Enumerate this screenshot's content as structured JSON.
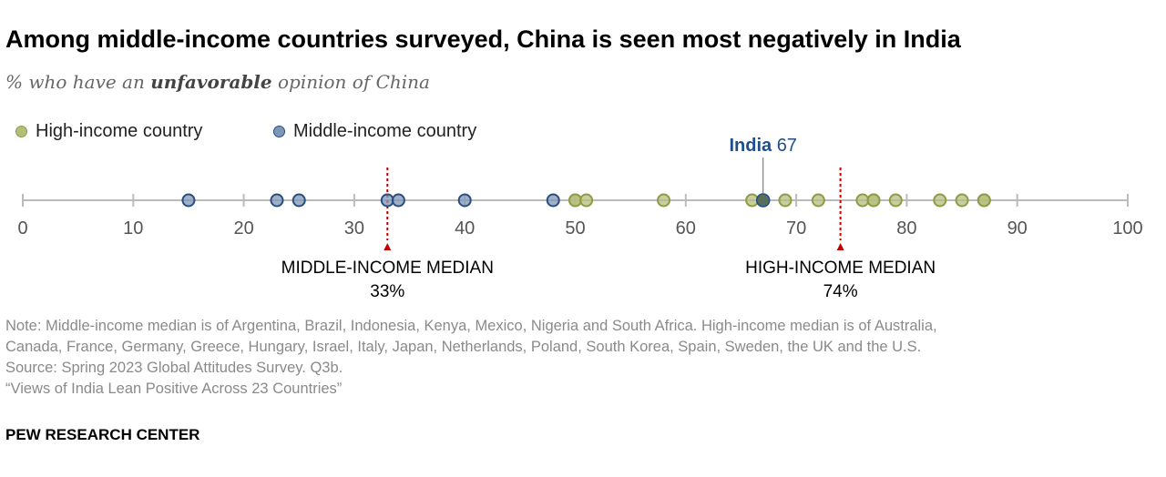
{
  "title": "Among middle-income countries surveyed, China is seen most negatively in India",
  "subtitle_prefix": "% who have an ",
  "subtitle_bold": "unfavorable",
  "subtitle_suffix": " opinion of China",
  "legend": [
    {
      "label": "High-income country",
      "color": "#b5bd7c"
    },
    {
      "label": "Middle-income country",
      "color": "#7f97b6"
    }
  ],
  "notes": [
    "Note: Middle-income median is of Argentina, Brazil, Indonesia, Kenya, Mexico, Nigeria and South Africa. High-income median is of Australia,",
    "Canada, France, Germany, Greece, Hungary, Israel, Italy, Japan, Netherlands, Poland, South Korea, Spain, Sweden, the UK and the U.S.",
    "Source: Spring 2023 Global Attitudes Survey. Q3b.",
    "“Views of India Lean Positive Across 23 Countries”"
  ],
  "footer": "PEW RESEARCH CENTER",
  "chart_data": {
    "type": "scatter",
    "xlim": [
      0,
      100
    ],
    "ticks": [
      "0",
      "10",
      "20",
      "30",
      "40",
      "50",
      "60",
      "70",
      "80",
      "90",
      "100"
    ],
    "series": [
      {
        "name": "High-income country",
        "color": "#b5bd7c",
        "stroke": "#8f9a45",
        "values": [
          50,
          50,
          51,
          58,
          66,
          67,
          69,
          72,
          76,
          77,
          77,
          79,
          83,
          85,
          87,
          87
        ]
      },
      {
        "name": "Middle-income country",
        "color": "#7f97b6",
        "stroke": "#2a4d80",
        "values": [
          15,
          23,
          25,
          33,
          34,
          40,
          48
        ]
      }
    ],
    "highlight": {
      "label": "India",
      "value": 67,
      "value_label": "67",
      "color": "#1f4e8c",
      "fill": "#5a6e5c"
    },
    "medians": [
      {
        "label": "MIDDLE-INCOME MEDIAN",
        "value": 33,
        "value_label": "33%",
        "color": "#c00000"
      },
      {
        "label": "HIGH-INCOME MEDIAN",
        "value": 74,
        "value_label": "74%",
        "color": "#c00000"
      }
    ]
  }
}
